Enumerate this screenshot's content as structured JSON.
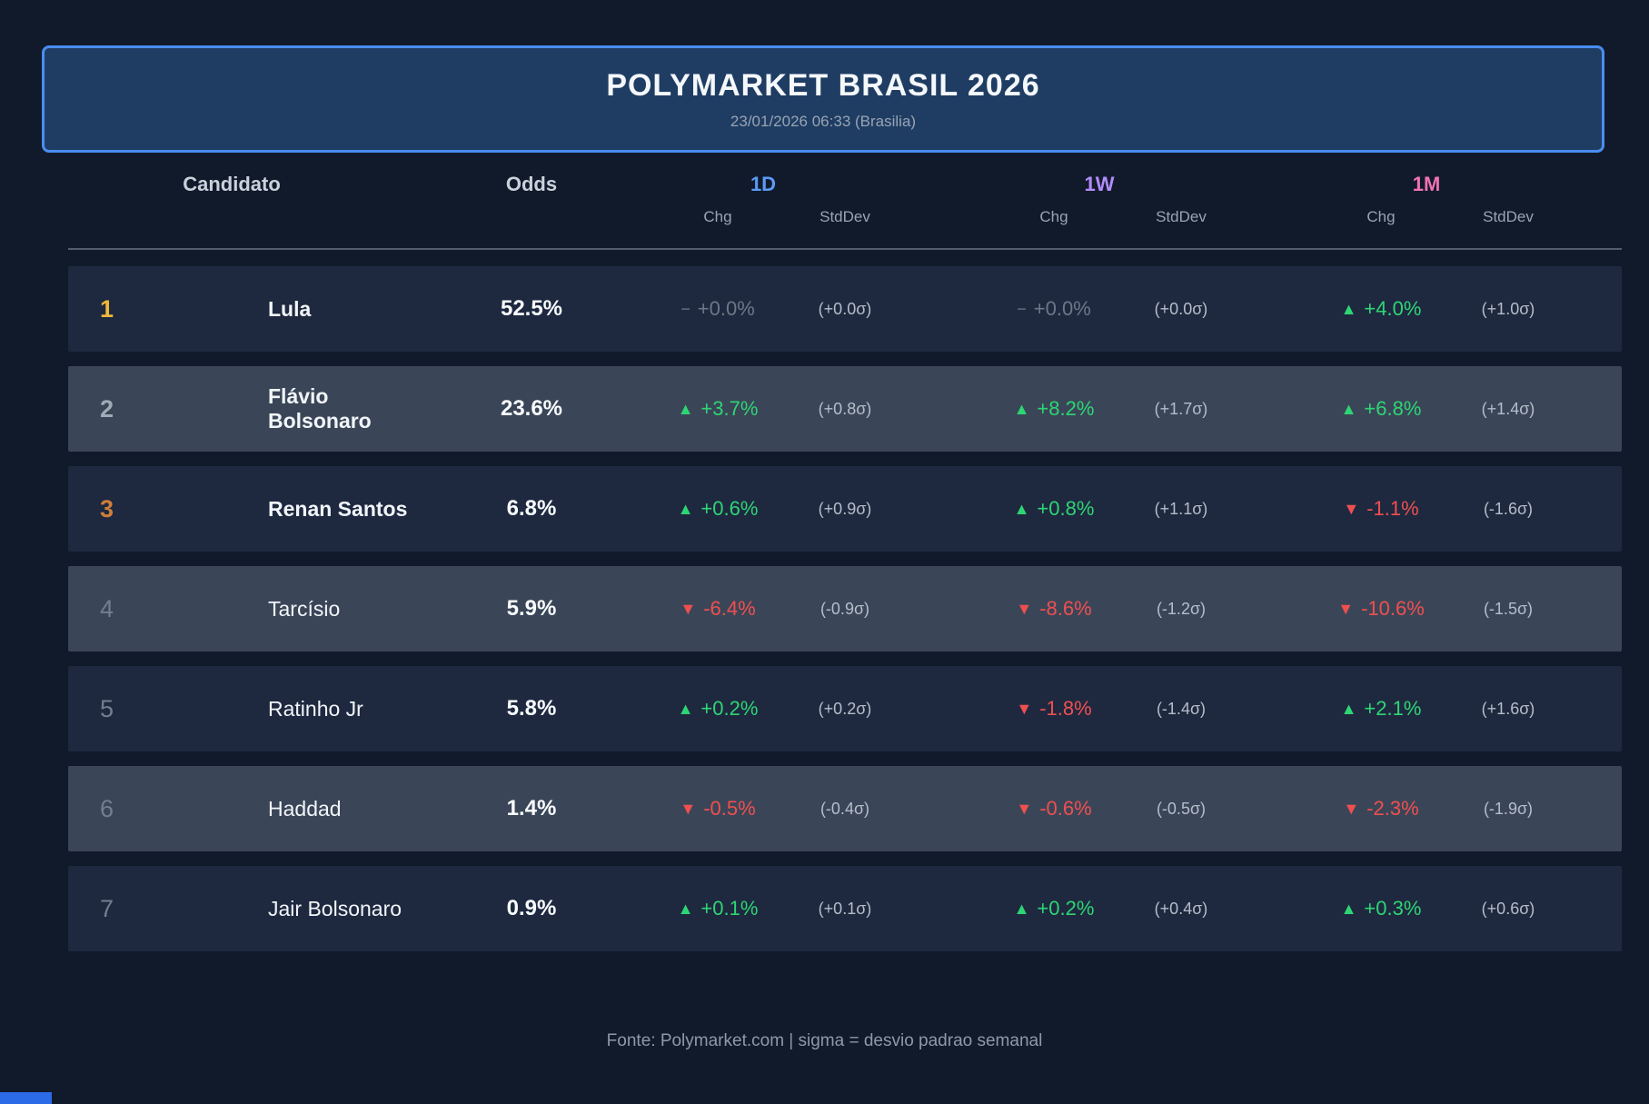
{
  "colors": {
    "accent_blue": "#4a8df0",
    "panel_blue": "#1f3d63",
    "col_1d": "#5b9bf5",
    "col_1w": "#b18cfa",
    "col_1m": "#f272b4",
    "up": "#2ed573",
    "down": "#f04f4f",
    "flat": "#6e7786",
    "gold": "#f0b73a",
    "silver": "#a0abb8",
    "bronze": "#cf7e3a"
  },
  "chart_data": {
    "type": "table",
    "title": "POLYMARKET BRASIL 2026",
    "subtitle": "23/01/2026 06:33 (Brasilia)",
    "footer": "Fonte: Polymarket.com | sigma = desvio padrao semanal",
    "column_headers": {
      "candidato": "Candidato",
      "odds": "Odds",
      "group_1d": "1D",
      "group_1w": "1W",
      "group_1m": "1M",
      "chg": "Chg",
      "stddev": "StdDev"
    },
    "rows": [
      {
        "rank": "1",
        "name": "Lula",
        "odds": "52.5%",
        "d1": {
          "dir": "flat",
          "arrow": "−",
          "value": "+0.0%",
          "stddev": "(+0.0σ)"
        },
        "w1": {
          "dir": "flat",
          "arrow": "−",
          "value": "+0.0%",
          "stddev": "(+0.0σ)"
        },
        "m1": {
          "dir": "up",
          "arrow": "▲",
          "value": "+4.0%",
          "stddev": "(+1.0σ)"
        }
      },
      {
        "rank": "2",
        "name": "Flávio Bolsonaro",
        "odds": "23.6%",
        "d1": {
          "dir": "up",
          "arrow": "▲",
          "value": "+3.7%",
          "stddev": "(+0.8σ)"
        },
        "w1": {
          "dir": "up",
          "arrow": "▲",
          "value": "+8.2%",
          "stddev": "(+1.7σ)"
        },
        "m1": {
          "dir": "up",
          "arrow": "▲",
          "value": "+6.8%",
          "stddev": "(+1.4σ)"
        }
      },
      {
        "rank": "3",
        "name": "Renan Santos",
        "odds": "6.8%",
        "d1": {
          "dir": "up",
          "arrow": "▲",
          "value": "+0.6%",
          "stddev": "(+0.9σ)"
        },
        "w1": {
          "dir": "up",
          "arrow": "▲",
          "value": "+0.8%",
          "stddev": "(+1.1σ)"
        },
        "m1": {
          "dir": "down",
          "arrow": "▼",
          "value": "-1.1%",
          "stddev": "(-1.6σ)"
        }
      },
      {
        "rank": "4",
        "name": "Tarcísio",
        "odds": "5.9%",
        "d1": {
          "dir": "down",
          "arrow": "▼",
          "value": "-6.4%",
          "stddev": "(-0.9σ)"
        },
        "w1": {
          "dir": "down",
          "arrow": "▼",
          "value": "-8.6%",
          "stddev": "(-1.2σ)"
        },
        "m1": {
          "dir": "down",
          "arrow": "▼",
          "value": "-10.6%",
          "stddev": "(-1.5σ)"
        }
      },
      {
        "rank": "5",
        "name": "Ratinho Jr",
        "odds": "5.8%",
        "d1": {
          "dir": "up",
          "arrow": "▲",
          "value": "+0.2%",
          "stddev": "(+0.2σ)"
        },
        "w1": {
          "dir": "down",
          "arrow": "▼",
          "value": "-1.8%",
          "stddev": "(-1.4σ)"
        },
        "m1": {
          "dir": "up",
          "arrow": "▲",
          "value": "+2.1%",
          "stddev": "(+1.6σ)"
        }
      },
      {
        "rank": "6",
        "name": "Haddad",
        "odds": "1.4%",
        "d1": {
          "dir": "down",
          "arrow": "▼",
          "value": "-0.5%",
          "stddev": "(-0.4σ)"
        },
        "w1": {
          "dir": "down",
          "arrow": "▼",
          "value": "-0.6%",
          "stddev": "(-0.5σ)"
        },
        "m1": {
          "dir": "down",
          "arrow": "▼",
          "value": "-2.3%",
          "stddev": "(-1.9σ)"
        }
      },
      {
        "rank": "7",
        "name": "Jair Bolsonaro",
        "odds": "0.9%",
        "d1": {
          "dir": "up",
          "arrow": "▲",
          "value": "+0.1%",
          "stddev": "(+0.1σ)"
        },
        "w1": {
          "dir": "up",
          "arrow": "▲",
          "value": "+0.2%",
          "stddev": "(+0.4σ)"
        },
        "m1": {
          "dir": "up",
          "arrow": "▲",
          "value": "+0.3%",
          "stddev": "(+0.6σ)"
        }
      }
    ]
  }
}
